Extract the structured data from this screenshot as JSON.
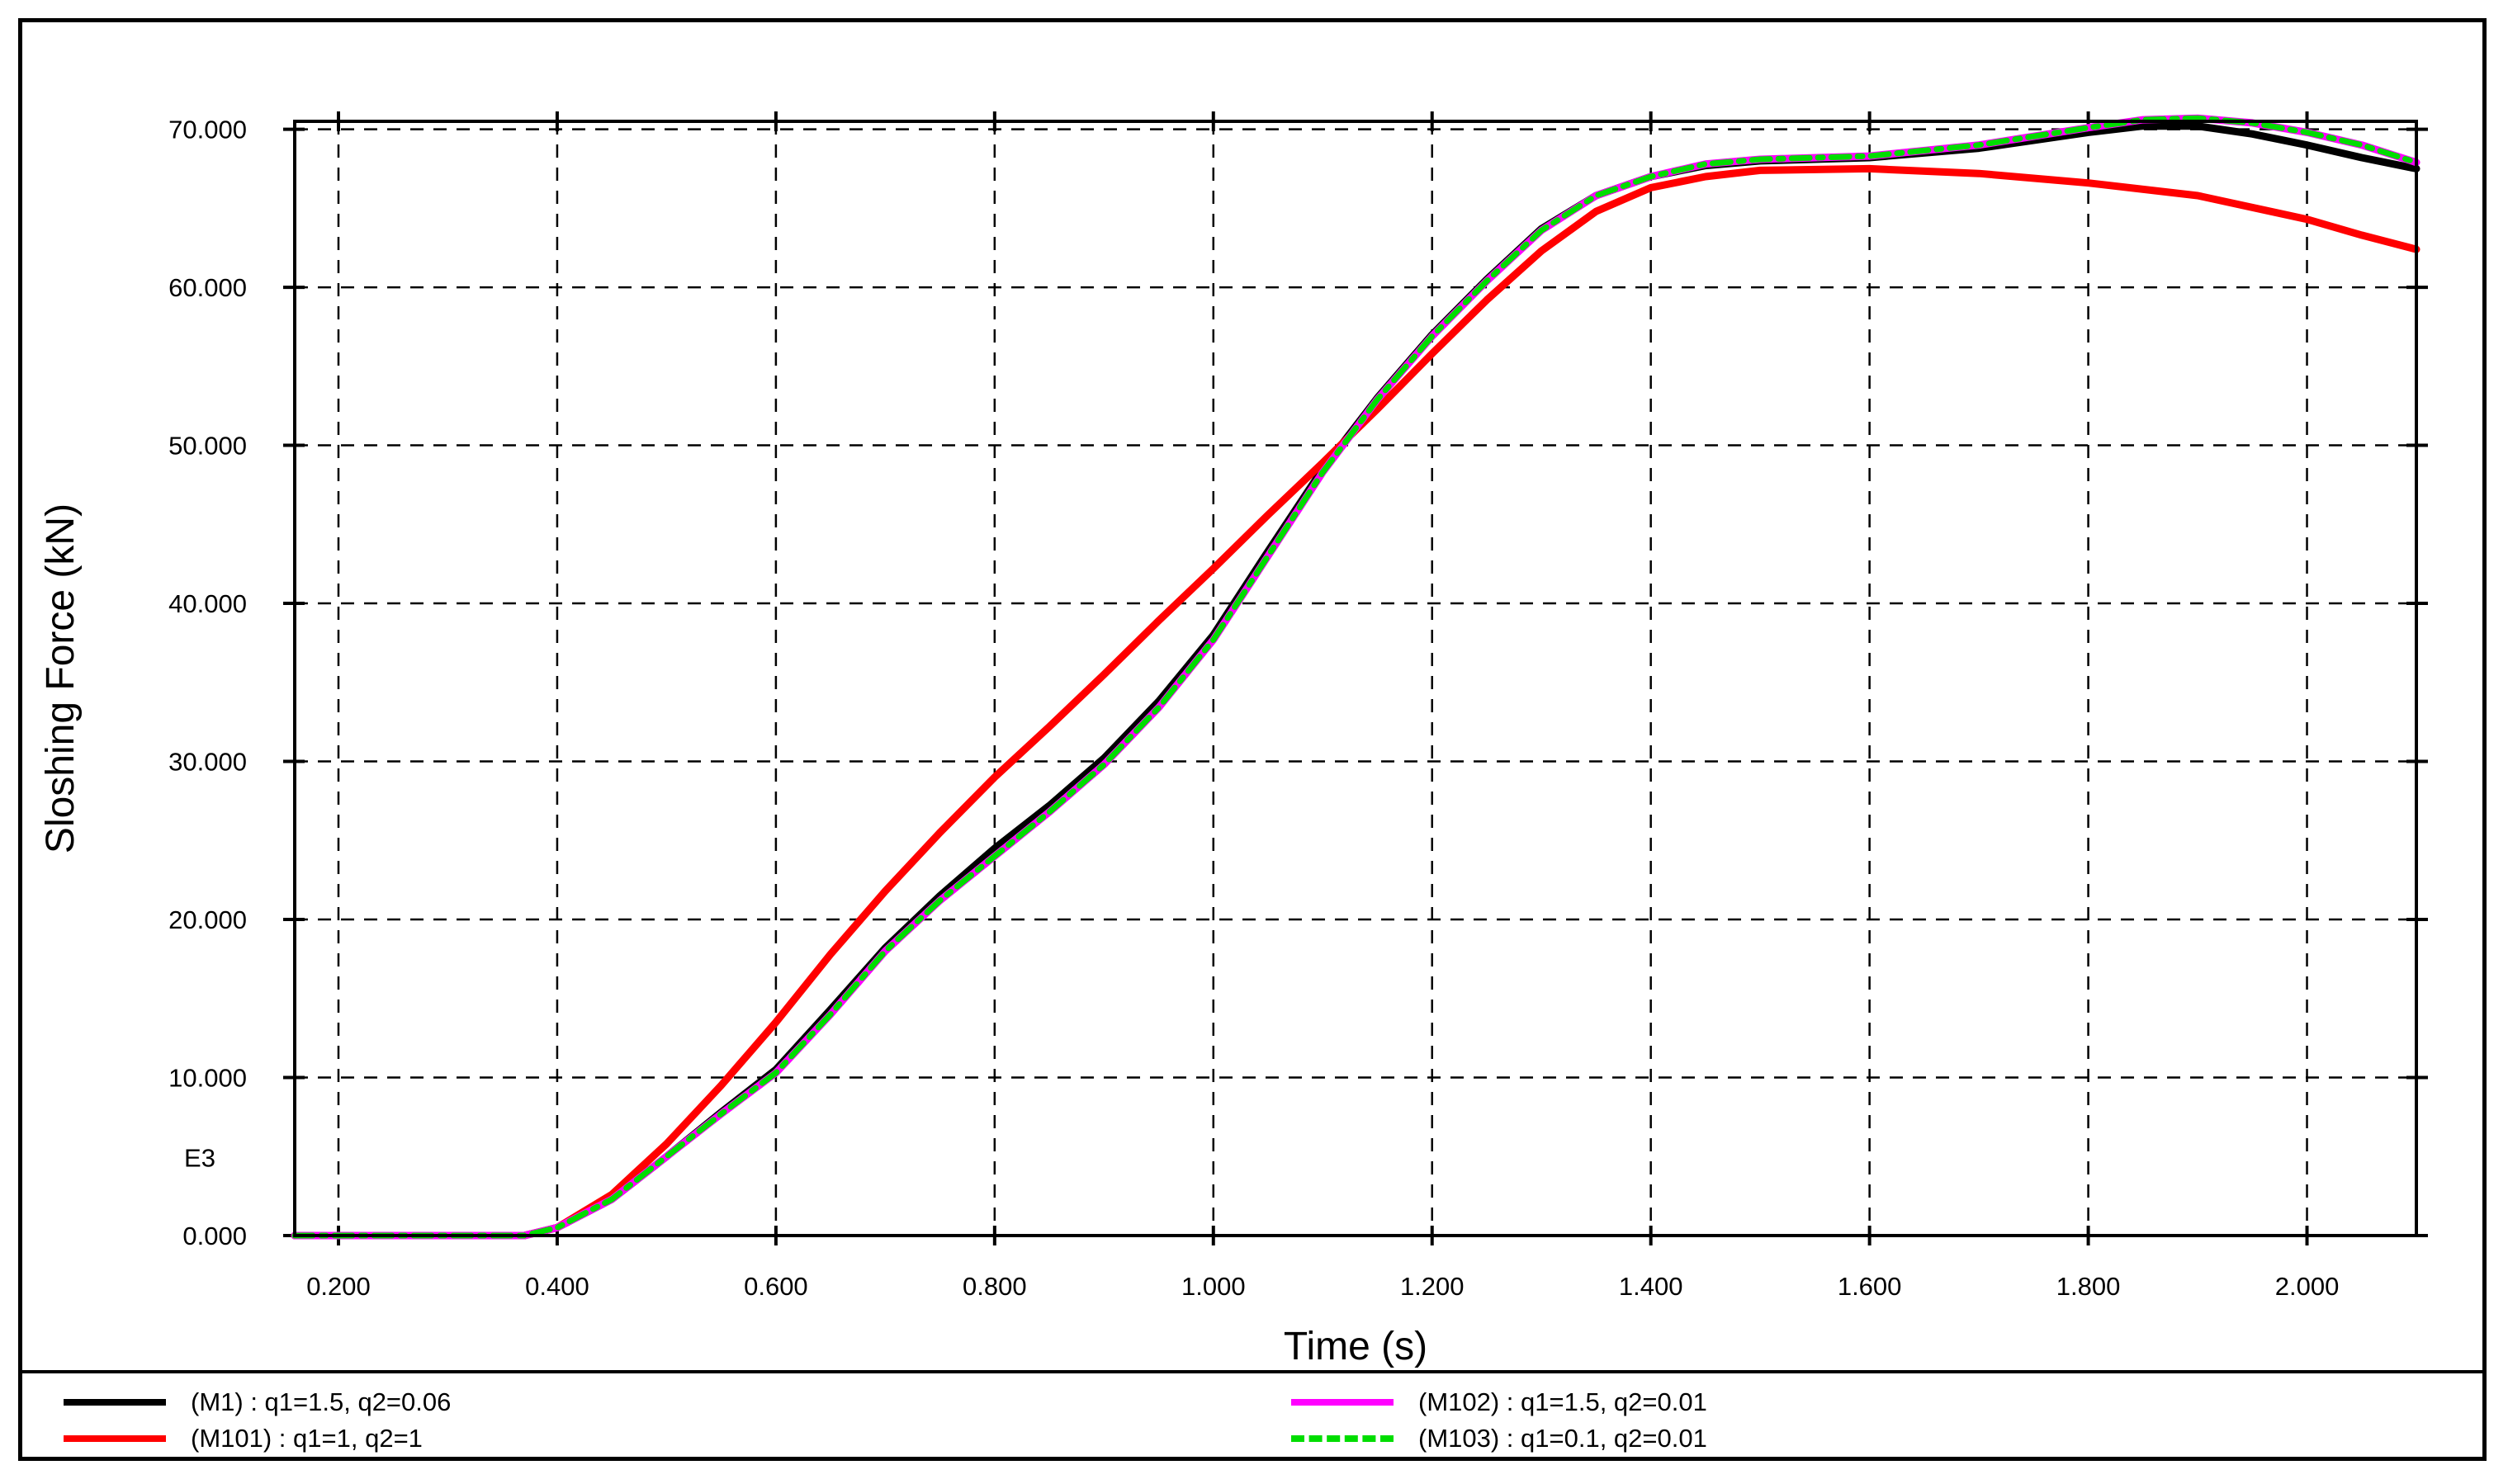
{
  "chart_data": {
    "type": "line",
    "xlabel": "Time (s)",
    "ylabel": "Sloshing Force (kN)",
    "y_multiplier_label": "E3",
    "xlim": [
      0.16,
      2.1
    ],
    "ylim": [
      0,
      70.5
    ],
    "x_ticks": [
      "0.200",
      "0.400",
      "0.600",
      "0.800",
      "1.000",
      "1.200",
      "1.400",
      "1.600",
      "1.800",
      "2.000"
    ],
    "y_ticks": [
      "0.000",
      "10.000",
      "20.000",
      "30.000",
      "40.000",
      "50.000",
      "60.000",
      "70.000"
    ],
    "grid": true,
    "legend_position": "bottom",
    "series": [
      {
        "name": "(M1) : q1=1.5, q2=0.06",
        "color": "#000000",
        "style": "solid",
        "points": [
          [
            0.16,
            0
          ],
          [
            0.23,
            0
          ],
          [
            0.37,
            0
          ],
          [
            0.4,
            0.5
          ],
          [
            0.45,
            2.3
          ],
          [
            0.5,
            5.0
          ],
          [
            0.55,
            7.8
          ],
          [
            0.6,
            10.5
          ],
          [
            0.65,
            14.3
          ],
          [
            0.7,
            18.2
          ],
          [
            0.75,
            21.5
          ],
          [
            0.8,
            24.5
          ],
          [
            0.85,
            27.2
          ],
          [
            0.9,
            30.2
          ],
          [
            0.95,
            33.8
          ],
          [
            1.0,
            38.0
          ],
          [
            1.05,
            43.3
          ],
          [
            1.1,
            48.5
          ],
          [
            1.15,
            53.0
          ],
          [
            1.2,
            57.0
          ],
          [
            1.25,
            60.5
          ],
          [
            1.3,
            63.7
          ],
          [
            1.35,
            65.8
          ],
          [
            1.4,
            67.0
          ],
          [
            1.45,
            67.7
          ],
          [
            1.5,
            68.0
          ],
          [
            1.6,
            68.2
          ],
          [
            1.7,
            68.8
          ],
          [
            1.8,
            69.8
          ],
          [
            1.85,
            70.2
          ],
          [
            1.9,
            70.2
          ],
          [
            1.95,
            69.7
          ],
          [
            2.0,
            69.0
          ],
          [
            2.05,
            68.2
          ],
          [
            2.1,
            67.5
          ]
        ]
      },
      {
        "name": "(M101) : q1=1, q2=1",
        "color": "#ff0000",
        "style": "solid",
        "points": [
          [
            0.16,
            0
          ],
          [
            0.23,
            0
          ],
          [
            0.37,
            0
          ],
          [
            0.4,
            0.5
          ],
          [
            0.45,
            2.6
          ],
          [
            0.5,
            5.8
          ],
          [
            0.55,
            9.5
          ],
          [
            0.6,
            13.5
          ],
          [
            0.65,
            17.8
          ],
          [
            0.7,
            21.8
          ],
          [
            0.75,
            25.5
          ],
          [
            0.8,
            29.0
          ],
          [
            0.85,
            32.2
          ],
          [
            0.9,
            35.5
          ],
          [
            0.95,
            38.9
          ],
          [
            1.0,
            42.2
          ],
          [
            1.05,
            45.6
          ],
          [
            1.1,
            48.9
          ],
          [
            1.15,
            52.3
          ],
          [
            1.2,
            55.8
          ],
          [
            1.25,
            59.2
          ],
          [
            1.3,
            62.3
          ],
          [
            1.35,
            64.8
          ],
          [
            1.4,
            66.3
          ],
          [
            1.45,
            67.0
          ],
          [
            1.5,
            67.4
          ],
          [
            1.6,
            67.5
          ],
          [
            1.7,
            67.2
          ],
          [
            1.8,
            66.6
          ],
          [
            1.9,
            65.8
          ],
          [
            2.0,
            64.3
          ],
          [
            2.05,
            63.3
          ],
          [
            2.1,
            62.4
          ]
        ]
      },
      {
        "name": "(M102) : q1=1.5, q2=0.01",
        "color": "#ff00ff",
        "style": "solid",
        "points": [
          [
            0.16,
            0
          ],
          [
            0.23,
            0
          ],
          [
            0.37,
            0
          ],
          [
            0.4,
            0.5
          ],
          [
            0.45,
            2.3
          ],
          [
            0.5,
            5.0
          ],
          [
            0.55,
            7.7
          ],
          [
            0.6,
            10.3
          ],
          [
            0.65,
            14.0
          ],
          [
            0.7,
            18.0
          ],
          [
            0.75,
            21.2
          ],
          [
            0.8,
            24.0
          ],
          [
            0.85,
            26.8
          ],
          [
            0.9,
            29.8
          ],
          [
            0.95,
            33.4
          ],
          [
            1.0,
            37.7
          ],
          [
            1.05,
            43.0
          ],
          [
            1.1,
            48.3
          ],
          [
            1.15,
            52.9
          ],
          [
            1.2,
            56.9
          ],
          [
            1.25,
            60.4
          ],
          [
            1.3,
            63.6
          ],
          [
            1.35,
            65.8
          ],
          [
            1.4,
            67.0
          ],
          [
            1.45,
            67.8
          ],
          [
            1.5,
            68.1
          ],
          [
            1.6,
            68.3
          ],
          [
            1.7,
            69.0
          ],
          [
            1.8,
            70.1
          ],
          [
            1.85,
            70.6
          ],
          [
            1.9,
            70.7
          ],
          [
            1.95,
            70.4
          ],
          [
            2.0,
            69.8
          ],
          [
            2.05,
            69.0
          ],
          [
            2.1,
            67.9
          ]
        ]
      },
      {
        "name": "(M103) : q1=0.1, q2=0.01",
        "color": "#00dd00",
        "style": "dashdot",
        "points": [
          [
            0.16,
            0
          ],
          [
            0.23,
            0
          ],
          [
            0.37,
            0
          ],
          [
            0.4,
            0.5
          ],
          [
            0.45,
            2.3
          ],
          [
            0.5,
            5.0
          ],
          [
            0.55,
            7.7
          ],
          [
            0.6,
            10.3
          ],
          [
            0.65,
            14.0
          ],
          [
            0.7,
            18.0
          ],
          [
            0.75,
            21.2
          ],
          [
            0.8,
            24.0
          ],
          [
            0.85,
            26.8
          ],
          [
            0.9,
            29.8
          ],
          [
            0.95,
            33.4
          ],
          [
            1.0,
            37.7
          ],
          [
            1.05,
            43.0
          ],
          [
            1.1,
            48.3
          ],
          [
            1.15,
            52.9
          ],
          [
            1.2,
            56.9
          ],
          [
            1.25,
            60.4
          ],
          [
            1.3,
            63.6
          ],
          [
            1.35,
            65.8
          ],
          [
            1.4,
            67.0
          ],
          [
            1.45,
            67.8
          ],
          [
            1.5,
            68.1
          ],
          [
            1.6,
            68.3
          ],
          [
            1.7,
            69.0
          ],
          [
            1.8,
            70.1
          ],
          [
            1.85,
            70.6
          ],
          [
            1.9,
            70.7
          ],
          [
            1.95,
            70.4
          ],
          [
            2.0,
            69.8
          ],
          [
            2.05,
            69.0
          ],
          [
            2.1,
            67.9
          ]
        ]
      }
    ]
  }
}
